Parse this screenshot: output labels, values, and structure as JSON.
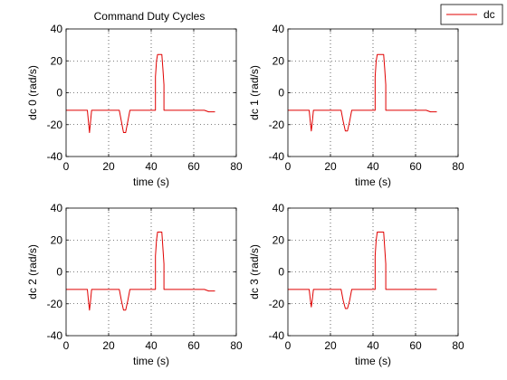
{
  "figure": {
    "title": "Command Duty Cycles",
    "legend": {
      "label": "dc",
      "placement": "top-right",
      "color": "#e00000"
    },
    "line_color": "#e00000"
  },
  "chart_data": [
    {
      "type": "line",
      "title": "Command Duty Cycles",
      "xlabel": "time (s)",
      "ylabel": "dc 0 (rad/s)",
      "xlim": [
        0,
        80
      ],
      "ylim": [
        -40,
        40
      ],
      "xticks": [
        0,
        20,
        40,
        60,
        80
      ],
      "yticks": [
        -40,
        -20,
        0,
        20,
        40
      ],
      "grid": true,
      "series": [
        {
          "name": "dc",
          "x": [
            0,
            10,
            10.5,
            11,
            11.5,
            12,
            18,
            25,
            26,
            27,
            28,
            29,
            30,
            42,
            42,
            42.5,
            43,
            44,
            45,
            45.5,
            46,
            46,
            55,
            65,
            67,
            70
          ],
          "y": [
            -11,
            -11,
            -18,
            -25,
            -18,
            -11,
            -11,
            -11,
            -18,
            -25,
            -25,
            -18,
            -11,
            -11,
            10,
            20,
            24,
            24,
            24,
            15,
            5,
            -11,
            -11,
            -11,
            -12,
            -12
          ]
        }
      ]
    },
    {
      "type": "line",
      "title": "",
      "xlabel": "time (s)",
      "ylabel": "dc 1 (rad/s)",
      "xlim": [
        0,
        80
      ],
      "ylim": [
        -40,
        40
      ],
      "xticks": [
        0,
        20,
        40,
        60,
        80
      ],
      "yticks": [
        -40,
        -20,
        0,
        20,
        40
      ],
      "grid": true,
      "series": [
        {
          "name": "dc",
          "x": [
            0,
            10,
            10.5,
            11,
            11.5,
            12,
            18,
            25,
            26,
            27,
            28,
            29,
            30,
            41,
            41,
            41.5,
            42,
            44,
            45,
            45.5,
            46,
            46,
            55,
            65,
            67,
            70
          ],
          "y": [
            -11,
            -11,
            -18,
            -24,
            -18,
            -11,
            -11,
            -11,
            -18,
            -24,
            -24,
            -18,
            -11,
            -11,
            10,
            20,
            24,
            24,
            24,
            15,
            5,
            -11,
            -11,
            -11,
            -12,
            -12
          ]
        }
      ]
    },
    {
      "type": "line",
      "title": "",
      "xlabel": "time (s)",
      "ylabel": "dc 2 (rad/s)",
      "xlim": [
        0,
        80
      ],
      "ylim": [
        -40,
        40
      ],
      "xticks": [
        0,
        20,
        40,
        60,
        80
      ],
      "yticks": [
        -40,
        -20,
        0,
        20,
        40
      ],
      "grid": true,
      "series": [
        {
          "name": "dc",
          "x": [
            0,
            10,
            10.5,
            11,
            11.5,
            12,
            18,
            25,
            26,
            27,
            28,
            29,
            30,
            42,
            42,
            42.5,
            43,
            45,
            45.5,
            46,
            46,
            55,
            65,
            67,
            70
          ],
          "y": [
            -11,
            -11,
            -18,
            -24,
            -18,
            -11,
            -11,
            -11,
            -18,
            -24,
            -24,
            -18,
            -11,
            -11,
            10,
            20,
            25,
            25,
            15,
            5,
            -11,
            -11,
            -11,
            -12,
            -12
          ]
        }
      ]
    },
    {
      "type": "line",
      "title": "",
      "xlabel": "time (s)",
      "ylabel": "dc 3 (rad/s)",
      "xlim": [
        0,
        80
      ],
      "ylim": [
        -40,
        40
      ],
      "xticks": [
        0,
        20,
        40,
        60,
        80
      ],
      "yticks": [
        -40,
        -20,
        0,
        20,
        40
      ],
      "grid": true,
      "series": [
        {
          "name": "dc",
          "x": [
            0,
            10,
            10.5,
            11,
            11.5,
            12,
            18,
            25,
            26,
            27,
            28,
            29,
            30,
            41,
            41,
            41.5,
            42,
            44,
            45,
            45.5,
            46,
            46,
            55,
            65,
            67,
            70
          ],
          "y": [
            -11,
            -11,
            -17,
            -22,
            -17,
            -11,
            -11,
            -11,
            -18,
            -23,
            -23,
            -18,
            -11,
            -11,
            10,
            20,
            25,
            25,
            25,
            15,
            5,
            -11,
            -11,
            -11,
            -11,
            -11
          ]
        }
      ]
    }
  ]
}
